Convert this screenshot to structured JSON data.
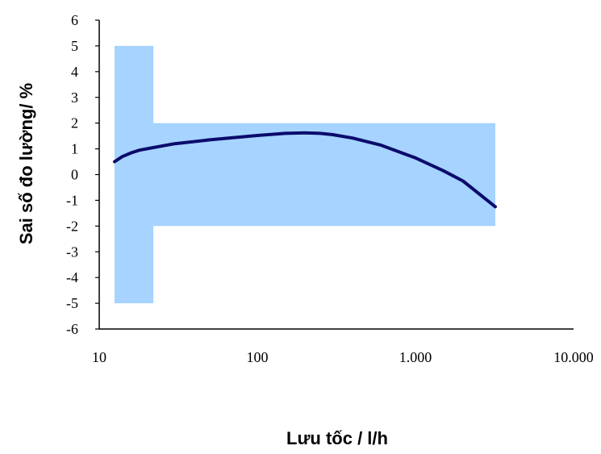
{
  "chart_data": {
    "type": "line",
    "xlabel": "Lưu tốc / l/h",
    "ylabel": "Sai số đo lường/ %",
    "x_scale": "log",
    "xlim": [
      10,
      10000
    ],
    "ylim": [
      -6,
      6
    ],
    "grid": false,
    "x_ticks": [
      {
        "value": 10,
        "label": "10"
      },
      {
        "value": 100,
        "label": "100"
      },
      {
        "value": 1000,
        "label": "1.000"
      },
      {
        "value": 10000,
        "label": "10.000"
      }
    ],
    "y_ticks": [
      {
        "value": 6,
        "label": "6"
      },
      {
        "value": 5,
        "label": "5"
      },
      {
        "value": 4,
        "label": "4"
      },
      {
        "value": 3,
        "label": "3"
      },
      {
        "value": 2,
        "label": "2"
      },
      {
        "value": 1,
        "label": "1"
      },
      {
        "value": 0,
        "label": "0"
      },
      {
        "value": -1,
        "label": "-1"
      },
      {
        "value": -2,
        "label": "-2"
      },
      {
        "value": -3,
        "label": "-3"
      },
      {
        "value": -4,
        "label": "-4"
      },
      {
        "value": -5,
        "label": "-5"
      },
      {
        "value": -6,
        "label": "-6"
      }
    ],
    "tolerance_band": {
      "color": "#a6d3ff",
      "lower_zone": {
        "x_min": 12.5,
        "x_max": 22,
        "y_min": -5,
        "y_max": 5
      },
      "upper_zone": {
        "x_min": 22,
        "x_max": 3200,
        "y_min": -2,
        "y_max": 2
      }
    },
    "series": [
      {
        "color": "#0b0b6b",
        "x": [
          12.5,
          14,
          16,
          18,
          22,
          30,
          50,
          100,
          150,
          200,
          250,
          300,
          400,
          600,
          1000,
          1500,
          2000,
          3200
        ],
        "y": [
          0.5,
          0.7,
          0.85,
          0.95,
          1.05,
          1.2,
          1.35,
          1.52,
          1.6,
          1.62,
          1.6,
          1.55,
          1.42,
          1.15,
          0.65,
          0.15,
          -0.25,
          -1.25
        ]
      }
    ]
  }
}
